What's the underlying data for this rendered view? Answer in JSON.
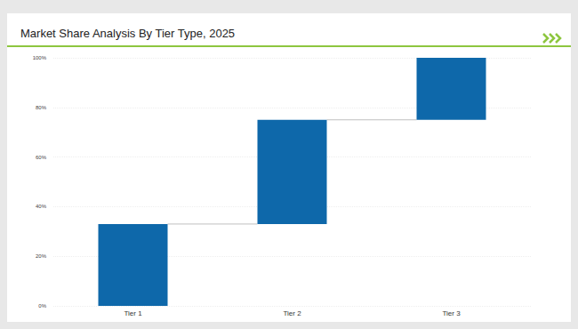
{
  "chart_data": {
    "type": "waterfall",
    "title": "Market Share Analysis By Tier Type, 2025",
    "categories": [
      "Tier 1",
      "Tier 2",
      "Tier 3"
    ],
    "values": [
      33,
      42,
      25
    ],
    "color": "#0e68aa",
    "ylim": [
      0,
      100
    ],
    "yticks": [
      {
        "value": 0,
        "label": "0%"
      },
      {
        "value": 20,
        "label": "20%"
      },
      {
        "value": 40,
        "label": "40%"
      },
      {
        "value": 60,
        "label": "60%"
      },
      {
        "value": 80,
        "label": "80%"
      },
      {
        "value": 100,
        "label": "100%"
      }
    ],
    "grid": true
  }
}
